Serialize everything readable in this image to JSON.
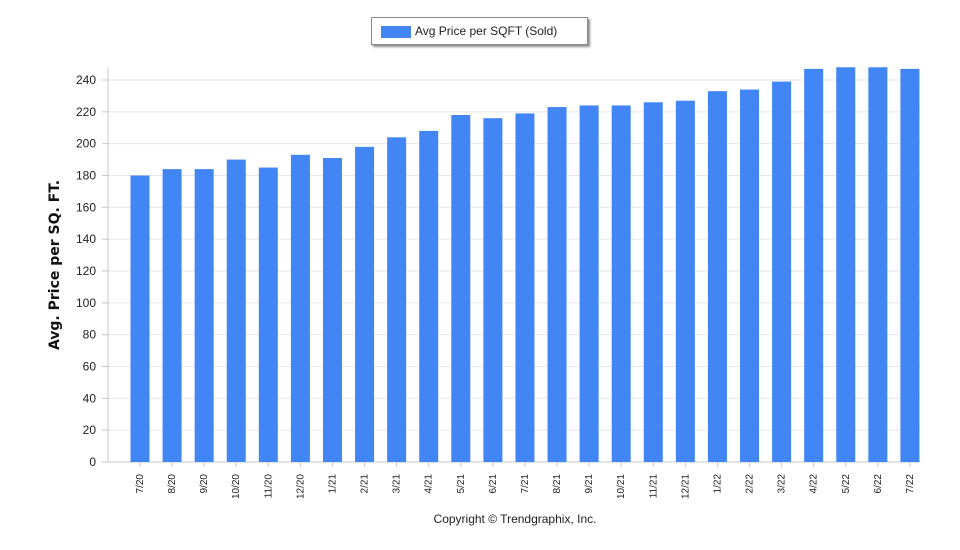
{
  "chart_data": {
    "type": "bar",
    "categories": [
      "7/20",
      "8/20",
      "9/20",
      "10/20",
      "11/20",
      "12/20",
      "1/21",
      "2/21",
      "3/21",
      "4/21",
      "5/21",
      "6/21",
      "7/21",
      "8/21",
      "9/21",
      "10/21",
      "11/21",
      "12/21",
      "1/22",
      "2/22",
      "3/22",
      "4/22",
      "5/22",
      "6/22",
      "7/22"
    ],
    "series": [
      {
        "name": "Avg Price per SQFT (Sold)",
        "color": "#4285f4",
        "values": [
          180,
          184,
          184,
          190,
          185,
          193,
          191,
          198,
          204,
          208,
          218,
          216,
          219,
          223,
          224,
          224,
          226,
          227,
          233,
          234,
          239,
          247,
          248,
          248,
          247
        ]
      }
    ],
    "ylabel": "Avg. Price per SQ. FT.",
    "ylim": [
      0,
      240
    ],
    "yticks": [
      0,
      20,
      40,
      60,
      80,
      100,
      120,
      140,
      160,
      180,
      200,
      220,
      240
    ],
    "grid": true,
    "legend_position": "top-center",
    "footer": "Copyright © Trendgraphix, Inc."
  }
}
